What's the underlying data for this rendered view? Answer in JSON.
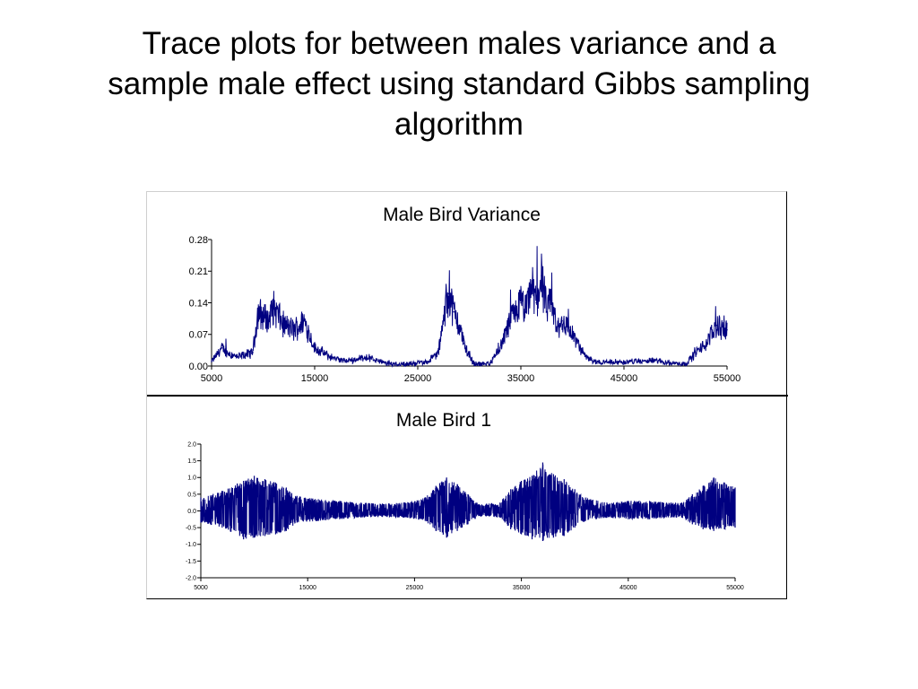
{
  "slide": {
    "title_line1": "Trace plots for between males variance and a",
    "title_line2": "sample male effect using standard Gibbs sampling",
    "title_line3": "algorithm"
  },
  "colors": {
    "trace": "#000080",
    "axis": "#000000"
  },
  "chart_data": [
    {
      "type": "line",
      "title": "Male Bird Variance",
      "xlabel": "",
      "ylabel": "",
      "xlim": [
        5000,
        55000
      ],
      "ylim": [
        0,
        0.28
      ],
      "x_ticks": [
        5000,
        15000,
        25000,
        35000,
        45000,
        55000
      ],
      "x_tick_labels": [
        "5000",
        "15000",
        "25000",
        "35000",
        "45000",
        "55000"
      ],
      "y_ticks": [
        0,
        0.07,
        0.14,
        0.21,
        0.28
      ],
      "y_tick_labels": [
        "0.00",
        "0.07",
        "0.14",
        "0.21",
        "0.28"
      ],
      "grid": false,
      "series": [
        {
          "x": [
            5000,
            6000,
            6500,
            7500,
            9000,
            9500,
            10500,
            11000,
            12000,
            13000,
            14000,
            15000,
            16500,
            18000,
            20000,
            22000,
            24000,
            26000,
            27000,
            27500,
            28000,
            28500,
            29000,
            29500,
            30000,
            30500,
            31000,
            32000,
            33000,
            34000,
            35000,
            35500,
            36000,
            36500,
            37000,
            37500,
            38000,
            38500,
            39000,
            40000,
            41000,
            42000,
            44000,
            46000,
            48000,
            50000,
            51000,
            52000,
            53000,
            54000,
            55000
          ],
          "y": [
            0.01,
            0.04,
            0.03,
            0.02,
            0.03,
            0.12,
            0.1,
            0.13,
            0.09,
            0.08,
            0.1,
            0.04,
            0.02,
            0.01,
            0.02,
            0.005,
            0.004,
            0.01,
            0.03,
            0.1,
            0.16,
            0.12,
            0.09,
            0.05,
            0.02,
            0.005,
            0.004,
            0.006,
            0.04,
            0.1,
            0.14,
            0.12,
            0.18,
            0.14,
            0.2,
            0.12,
            0.14,
            0.08,
            0.1,
            0.07,
            0.03,
            0.01,
            0.008,
            0.01,
            0.012,
            0.006,
            0.005,
            0.03,
            0.05,
            0.09,
            0.08
          ]
        }
      ]
    },
    {
      "type": "line",
      "title": "Male Bird 1",
      "xlabel": "",
      "ylabel": "",
      "xlim": [
        5000,
        55000
      ],
      "ylim": [
        -2.0,
        2.0
      ],
      "x_ticks": [
        5000,
        15000,
        25000,
        35000,
        45000,
        55000
      ],
      "x_tick_labels": [
        "5000",
        "15000",
        "25000",
        "35000",
        "45000",
        "55000"
      ],
      "y_ticks": [
        -2.0,
        -1.5,
        -1.0,
        -0.5,
        0.0,
        0.5,
        1.0,
        1.5,
        2.0
      ],
      "y_tick_labels": [
        "-2.0",
        "-1.5",
        "-1.0",
        "-0.5",
        "0.0",
        "0.5",
        "1.0",
        "1.5",
        "2.0"
      ],
      "grid": false,
      "series": [
        {
          "x": [
            5000,
            7000,
            9000,
            10000,
            11000,
            12000,
            13000,
            14000,
            16000,
            18000,
            20000,
            22000,
            24000,
            26000,
            27000,
            28000,
            29000,
            30000,
            31000,
            33000,
            34000,
            35000,
            36000,
            37000,
            38000,
            39000,
            40000,
            41000,
            43000,
            45000,
            47000,
            49000,
            50000,
            51000,
            52000,
            53000,
            54000,
            55000
          ],
          "y_min": [
            -0.35,
            -0.5,
            -0.85,
            -0.8,
            -0.75,
            -0.7,
            -0.6,
            -0.35,
            -0.3,
            -0.25,
            -0.2,
            -0.18,
            -0.2,
            -0.3,
            -0.6,
            -0.8,
            -0.6,
            -0.4,
            -0.15,
            -0.2,
            -0.55,
            -0.7,
            -0.85,
            -0.9,
            -0.8,
            -0.75,
            -0.5,
            -0.3,
            -0.2,
            -0.25,
            -0.25,
            -0.2,
            -0.2,
            -0.4,
            -0.55,
            -0.6,
            -0.55,
            -0.5
          ],
          "y_max": [
            0.4,
            0.6,
            0.9,
            1.05,
            0.95,
            0.85,
            0.7,
            0.45,
            0.35,
            0.3,
            0.25,
            0.22,
            0.25,
            0.4,
            0.75,
            1.0,
            0.8,
            0.5,
            0.2,
            0.25,
            0.65,
            0.9,
            1.05,
            1.45,
            1.1,
            0.95,
            0.65,
            0.4,
            0.25,
            0.3,
            0.3,
            0.25,
            0.25,
            0.5,
            0.75,
            1.0,
            0.85,
            0.7
          ]
        }
      ]
    }
  ]
}
